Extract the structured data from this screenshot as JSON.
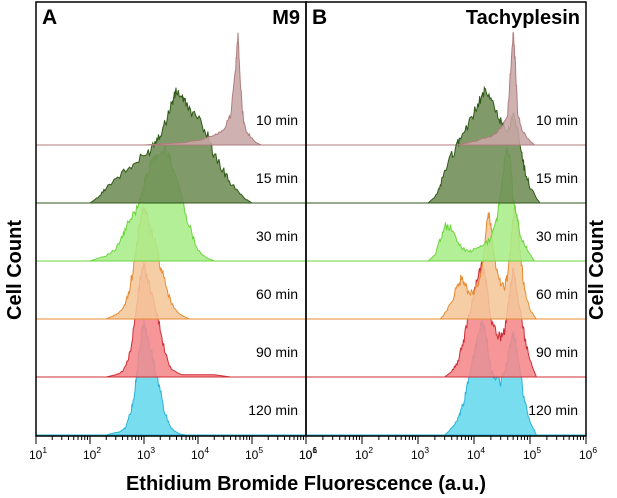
{
  "figure": {
    "ylabel_left": "Cell Count",
    "ylabel_right": "Cell Count",
    "xlabel": "Ethidium Bromide Fluorescence (a.u.)"
  },
  "chart_data": [
    {
      "type": "area",
      "panel": "A",
      "title": "M9",
      "xlabel": "Ethidium Bromide Fluorescence (a.u.)",
      "ylabel": "Cell Count",
      "x_scale": "log",
      "xlim": [
        10,
        1000000
      ],
      "x_ticks": [
        {
          "base": "10",
          "exp": "1"
        },
        {
          "base": "10",
          "exp": "2"
        },
        {
          "base": "10",
          "exp": "3"
        },
        {
          "base": "10",
          "exp": "4"
        },
        {
          "base": "10",
          "exp": "5"
        },
        {
          "base": "10",
          "exp": "6"
        }
      ],
      "series": [
        {
          "name": "10 min",
          "fill": "#c9a6a6",
          "stroke": "#b07c7c",
          "points": [
            [
              1000,
              0
            ],
            [
              5000,
              0.02
            ],
            [
              10000,
              0.04
            ],
            [
              20000,
              0.08
            ],
            [
              30000,
              0.14
            ],
            [
              40000,
              0.25
            ],
            [
              50000,
              0.7
            ],
            [
              55000,
              1.0
            ],
            [
              60000,
              0.6
            ],
            [
              70000,
              0.2
            ],
            [
              80000,
              0.12
            ],
            [
              100000,
              0.06
            ],
            [
              120000,
              0.02
            ],
            [
              150000,
              0
            ]
          ]
        },
        {
          "name": "15 min",
          "fill": "#6e8c55",
          "stroke": "#2f5a18",
          "points": [
            [
              100,
              0
            ],
            [
              150,
              0.06
            ],
            [
              200,
              0.14
            ],
            [
              300,
              0.22
            ],
            [
              500,
              0.3
            ],
            [
              800,
              0.38
            ],
            [
              1200,
              0.45
            ],
            [
              1600,
              0.55
            ],
            [
              2000,
              0.62
            ],
            [
              2500,
              0.72
            ],
            [
              3000,
              0.84
            ],
            [
              3500,
              0.93
            ],
            [
              4000,
              1.0
            ],
            [
              5000,
              0.95
            ],
            [
              6000,
              0.88
            ],
            [
              8000,
              0.8
            ],
            [
              12000,
              0.7
            ],
            [
              16000,
              0.58
            ],
            [
              20000,
              0.42
            ],
            [
              30000,
              0.28
            ],
            [
              40000,
              0.18
            ],
            [
              60000,
              0.08
            ],
            [
              80000,
              0.03
            ],
            [
              100000,
              0
            ]
          ]
        },
        {
          "name": "30 min",
          "fill": "#a9ed87",
          "stroke": "#6bd43d",
          "points": [
            [
              100,
              0
            ],
            [
              200,
              0.05
            ],
            [
              300,
              0.1
            ],
            [
              400,
              0.22
            ],
            [
              500,
              0.32
            ],
            [
              700,
              0.45
            ],
            [
              900,
              0.6
            ],
            [
              1100,
              0.75
            ],
            [
              1300,
              0.85
            ],
            [
              1600,
              0.92
            ],
            [
              2000,
              0.95
            ],
            [
              2500,
              1.0
            ],
            [
              3000,
              0.92
            ],
            [
              3500,
              0.82
            ],
            [
              4500,
              0.66
            ],
            [
              6000,
              0.42
            ],
            [
              8000,
              0.22
            ],
            [
              10000,
              0.1
            ],
            [
              14000,
              0.03
            ],
            [
              20000,
              0
            ]
          ]
        },
        {
          "name": "60 min",
          "fill": "#f4c79a",
          "stroke": "#e88b32",
          "points": [
            [
              200,
              0
            ],
            [
              300,
              0.04
            ],
            [
              400,
              0.08
            ],
            [
              500,
              0.2
            ],
            [
              600,
              0.38
            ],
            [
              700,
              0.58
            ],
            [
              800,
              0.78
            ],
            [
              900,
              0.93
            ],
            [
              1000,
              1.0
            ],
            [
              1100,
              0.95
            ],
            [
              1300,
              0.82
            ],
            [
              1600,
              0.68
            ],
            [
              2000,
              0.48
            ],
            [
              2500,
              0.3
            ],
            [
              3200,
              0.14
            ],
            [
              4500,
              0.04
            ],
            [
              7000,
              0
            ]
          ]
        },
        {
          "name": "90 min",
          "fill": "#f5888a",
          "stroke": "#cf2d35",
          "points": [
            [
              200,
              0
            ],
            [
              300,
              0.02
            ],
            [
              400,
              0.05
            ],
            [
              500,
              0.14
            ],
            [
              600,
              0.32
            ],
            [
              700,
              0.55
            ],
            [
              800,
              0.78
            ],
            [
              900,
              0.95
            ],
            [
              1000,
              1.0
            ],
            [
              1100,
              0.92
            ],
            [
              1300,
              0.8
            ],
            [
              1600,
              0.65
            ],
            [
              2000,
              0.42
            ],
            [
              2500,
              0.2
            ],
            [
              3200,
              0.07
            ],
            [
              5000,
              0.02
            ],
            [
              20000,
              0.02
            ],
            [
              40000,
              0
            ]
          ]
        },
        {
          "name": "120 min",
          "fill": "#66d8ee",
          "stroke": "#29b4d8",
          "points": [
            [
              200,
              0
            ],
            [
              350,
              0.03
            ],
            [
              450,
              0.06
            ],
            [
              550,
              0.18
            ],
            [
              650,
              0.35
            ],
            [
              750,
              0.58
            ],
            [
              850,
              0.82
            ],
            [
              950,
              0.96
            ],
            [
              1000,
              1.0
            ],
            [
              1100,
              0.92
            ],
            [
              1300,
              0.78
            ],
            [
              1600,
              0.6
            ],
            [
              2000,
              0.38
            ],
            [
              2500,
              0.18
            ],
            [
              3200,
              0.06
            ],
            [
              4500,
              0.01
            ],
            [
              6000,
              0
            ]
          ]
        }
      ]
    },
    {
      "type": "area",
      "panel": "B",
      "title": "Tachyplesin",
      "xlabel": "Ethidium Bromide Fluorescence (a.u.)",
      "ylabel": "Cell Count",
      "x_scale": "log",
      "xlim": [
        10,
        1000000
      ],
      "x_ticks": [
        {
          "base": "10",
          "exp": "1"
        },
        {
          "base": "10",
          "exp": "2"
        },
        {
          "base": "10",
          "exp": "3"
        },
        {
          "base": "10",
          "exp": "4"
        },
        {
          "base": "10",
          "exp": "5"
        },
        {
          "base": "10",
          "exp": "6"
        }
      ],
      "series": [
        {
          "name": "10 min",
          "fill": "#c9a6a6",
          "stroke": "#b07c7c",
          "points": [
            [
              5000,
              0
            ],
            [
              10000,
              0.03
            ],
            [
              20000,
              0.08
            ],
            [
              30000,
              0.14
            ],
            [
              40000,
              0.3
            ],
            [
              45000,
              0.65
            ],
            [
              50000,
              1.0
            ],
            [
              55000,
              0.7
            ],
            [
              60000,
              0.3
            ],
            [
              70000,
              0.14
            ],
            [
              90000,
              0.06
            ],
            [
              120000,
              0
            ]
          ]
        },
        {
          "name": "15 min",
          "fill": "#6e8c55",
          "stroke": "#2f5a18",
          "points": [
            [
              1500,
              0
            ],
            [
              2000,
              0.05
            ],
            [
              2500,
              0.15
            ],
            [
              3000,
              0.3
            ],
            [
              4000,
              0.42
            ],
            [
              5000,
              0.52
            ],
            [
              6000,
              0.6
            ],
            [
              8000,
              0.7
            ],
            [
              10000,
              0.8
            ],
            [
              12000,
              0.9
            ],
            [
              14000,
              0.96
            ],
            [
              16000,
              1.0
            ],
            [
              20000,
              0.92
            ],
            [
              25000,
              0.82
            ],
            [
              30000,
              0.72
            ],
            [
              40000,
              0.62
            ],
            [
              50000,
              0.78
            ],
            [
              60000,
              0.65
            ],
            [
              70000,
              0.45
            ],
            [
              80000,
              0.3
            ],
            [
              100000,
              0.14
            ],
            [
              150000,
              0
            ]
          ]
        },
        {
          "name": "30 min",
          "fill": "#a9ed87",
          "stroke": "#6bd43d",
          "points": [
            [
              1500,
              0
            ],
            [
              2000,
              0.05
            ],
            [
              2500,
              0.2
            ],
            [
              3000,
              0.3
            ],
            [
              3500,
              0.32
            ],
            [
              4500,
              0.22
            ],
            [
              6000,
              0.12
            ],
            [
              8000,
              0.08
            ],
            [
              10000,
              0.1
            ],
            [
              15000,
              0.14
            ],
            [
              20000,
              0.2
            ],
            [
              25000,
              0.35
            ],
            [
              30000,
              0.6
            ],
            [
              35000,
              0.9
            ],
            [
              40000,
              1.0
            ],
            [
              45000,
              0.88
            ],
            [
              50000,
              0.55
            ],
            [
              60000,
              0.35
            ],
            [
              70000,
              0.2
            ],
            [
              90000,
              0.1
            ],
            [
              120000,
              0
            ]
          ]
        },
        {
          "name": "60 min",
          "fill": "#f4c79a",
          "stroke": "#e88b32",
          "points": [
            [
              2500,
              0
            ],
            [
              3000,
              0.05
            ],
            [
              4000,
              0.15
            ],
            [
              5000,
              0.3
            ],
            [
              6000,
              0.36
            ],
            [
              7000,
              0.3
            ],
            [
              8000,
              0.24
            ],
            [
              10000,
              0.22
            ],
            [
              12000,
              0.32
            ],
            [
              15000,
              0.6
            ],
            [
              18000,
              0.95
            ],
            [
              20000,
              0.85
            ],
            [
              22000,
              0.6
            ],
            [
              25000,
              0.45
            ],
            [
              30000,
              0.3
            ],
            [
              35000,
              0.28
            ],
            [
              40000,
              0.4
            ],
            [
              45000,
              0.65
            ],
            [
              50000,
              0.9
            ],
            [
              55000,
              1.0
            ],
            [
              60000,
              0.85
            ],
            [
              70000,
              0.5
            ],
            [
              80000,
              0.25
            ],
            [
              100000,
              0.08
            ],
            [
              130000,
              0
            ]
          ]
        },
        {
          "name": "90 min",
          "fill": "#f5888a",
          "stroke": "#cf2d35",
          "points": [
            [
              3000,
              0
            ],
            [
              4000,
              0.05
            ],
            [
              5000,
              0.12
            ],
            [
              6000,
              0.25
            ],
            [
              7000,
              0.4
            ],
            [
              8000,
              0.55
            ],
            [
              10000,
              0.75
            ],
            [
              12000,
              0.92
            ],
            [
              14000,
              1.0
            ],
            [
              16000,
              0.9
            ],
            [
              18000,
              0.7
            ],
            [
              20000,
              0.5
            ],
            [
              25000,
              0.38
            ],
            [
              30000,
              0.36
            ],
            [
              35000,
              0.42
            ],
            [
              40000,
              0.6
            ],
            [
              45000,
              0.82
            ],
            [
              50000,
              0.95
            ],
            [
              55000,
              0.88
            ],
            [
              60000,
              0.72
            ],
            [
              70000,
              0.55
            ],
            [
              80000,
              0.35
            ],
            [
              100000,
              0.15
            ],
            [
              130000,
              0
            ]
          ]
        },
        {
          "name": "120 min",
          "fill": "#66d8ee",
          "stroke": "#29b4d8",
          "points": [
            [
              3000,
              0
            ],
            [
              4000,
              0.06
            ],
            [
              5000,
              0.12
            ],
            [
              6000,
              0.22
            ],
            [
              7000,
              0.35
            ],
            [
              8000,
              0.52
            ],
            [
              10000,
              0.72
            ],
            [
              12000,
              0.9
            ],
            [
              14000,
              1.0
            ],
            [
              16000,
              0.92
            ],
            [
              18000,
              0.75
            ],
            [
              20000,
              0.58
            ],
            [
              25000,
              0.5
            ],
            [
              30000,
              0.48
            ],
            [
              35000,
              0.55
            ],
            [
              40000,
              0.68
            ],
            [
              45000,
              0.82
            ],
            [
              50000,
              0.92
            ],
            [
              55000,
              0.85
            ],
            [
              60000,
              0.7
            ],
            [
              70000,
              0.5
            ],
            [
              80000,
              0.3
            ],
            [
              100000,
              0.12
            ],
            [
              130000,
              0
            ]
          ]
        }
      ]
    }
  ]
}
